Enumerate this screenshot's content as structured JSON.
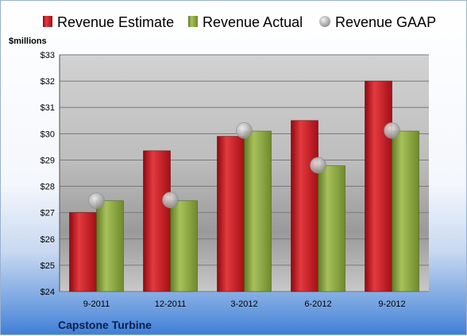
{
  "chart_data": {
    "type": "bar",
    "ylabel": "$millions",
    "footer": "Capstone Turbine",
    "categories": [
      "9-2011",
      "12-2011",
      "3-2012",
      "6-2012",
      "9-2012"
    ],
    "ylim": [
      24,
      33
    ],
    "yticks": [
      "$24",
      "$25",
      "$26",
      "$27",
      "$28",
      "$29",
      "$30",
      "$31",
      "$32",
      "$33"
    ],
    "grid": true,
    "legend_position": "top",
    "series": [
      {
        "name": "Revenue Estimate",
        "kind": "bar",
        "color": "#c0141c",
        "values": [
          27.0,
          29.35,
          29.9,
          30.5,
          32.0
        ]
      },
      {
        "name": "Revenue Actual",
        "kind": "bar",
        "color": "#86a13a",
        "values": [
          27.45,
          27.45,
          30.1,
          28.78,
          30.1
        ]
      },
      {
        "name": "Revenue GAAP",
        "kind": "marker",
        "color": "#b8b8b8",
        "values": [
          27.45,
          27.48,
          30.12,
          28.8,
          30.12
        ]
      }
    ]
  }
}
